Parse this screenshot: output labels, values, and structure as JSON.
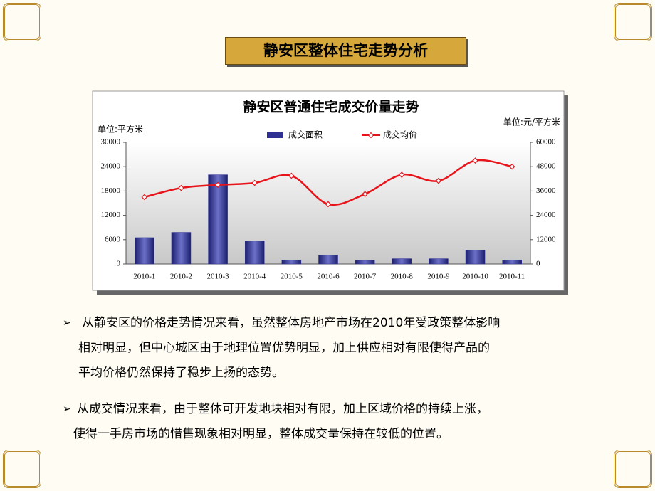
{
  "header": {
    "title": "静安区整体住宅走势分析"
  },
  "chart_data": {
    "type": "bar",
    "title": "静安区普通住宅成交价量走势",
    "y_label": "单位:平方米",
    "y2_label": "单位:元/平方米",
    "categories": [
      "2010-1",
      "2010-2",
      "2010-3",
      "2010-4",
      "2010-5",
      "2010-6",
      "2010-7",
      "2010-8",
      "2010-9",
      "2010-10",
      "2010-11"
    ],
    "series": [
      {
        "name": "成交面积",
        "type": "bar",
        "color": "#2e3192",
        "values": [
          6500,
          7800,
          22000,
          5700,
          1000,
          2200,
          900,
          1300,
          1300,
          3400,
          1000
        ]
      },
      {
        "name": "成交均价",
        "type": "line",
        "axis": "y2",
        "color": "#e8141b",
        "values": [
          33000,
          37500,
          39000,
          40000,
          43500,
          29500,
          34500,
          44000,
          41000,
          51000,
          48000
        ]
      }
    ],
    "ylim": [
      0,
      30000
    ],
    "yticks": [
      0,
      6000,
      12000,
      18000,
      24000,
      30000
    ],
    "y2lim": [
      0,
      60000
    ],
    "y2ticks": [
      0,
      12000,
      24000,
      36000,
      48000,
      60000
    ],
    "legend": "top"
  },
  "bullets": [
    {
      "lines": [
        "从静安区的价格走势情况来看，虽然整体房地产市场在2010年受政策整体影响",
        "相对明显，但中心城区由于地理位置优势明显，加上供应相对有限使得产品的",
        "平均价格仍然保持了稳步上扬的态势。"
      ]
    },
    {
      "lines": [
        "从成交情况来看，由于整体可开发地块相对有限，加上区域价格的持续上涨，",
        "使得一手房市场的惜售现象相对明显，整体成交量保持在较低的位置。"
      ]
    }
  ]
}
